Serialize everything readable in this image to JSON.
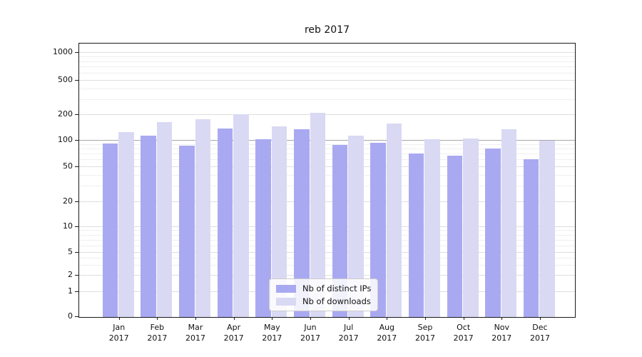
{
  "chart_data": {
    "type": "bar",
    "title": "reb 2017",
    "categories": [
      "Jan",
      "Feb",
      "Mar",
      "Apr",
      "May",
      "Jun",
      "Jul",
      "Aug",
      "Sep",
      "Oct",
      "Nov",
      "Dec"
    ],
    "x_year": "2017",
    "series": [
      {
        "name": "Nb of distinct IPs",
        "color": "#a9a9f2",
        "values": [
          93,
          115,
          88,
          140,
          104,
          135,
          89,
          94,
          72,
          67,
          82,
          62
        ]
      },
      {
        "name": "Nb of downloads",
        "color": "#d9d9f4",
        "values": [
          125,
          165,
          178,
          205,
          146,
          210,
          115,
          160,
          104,
          105,
          135,
          100
        ]
      }
    ],
    "yscale": "symlog",
    "ytick_labels": [
      "0",
      "1",
      "2",
      "5",
      "10",
      "20",
      "50",
      "100",
      "200",
      "500",
      "1000"
    ],
    "ytick_values": [
      0,
      1,
      2,
      5,
      10,
      20,
      50,
      100,
      200,
      500,
      1000
    ],
    "y_minor_values": [
      3,
      4,
      6,
      7,
      8,
      9,
      30,
      40,
      60,
      70,
      80,
      90,
      300,
      400,
      600,
      700,
      800,
      900
    ],
    "ylim": [
      0,
      1400
    ],
    "grid": true,
    "legend_position": "lower center"
  }
}
